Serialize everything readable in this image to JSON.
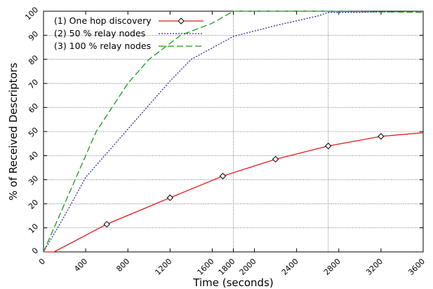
{
  "chart_data": {
    "type": "line",
    "xlabel": "Time (seconds)",
    "ylabel": "% of Received Descriptors",
    "xlim": [
      0,
      3600
    ],
    "ylim": [
      0,
      100
    ],
    "x_ticks": [
      0,
      400,
      800,
      1200,
      1600,
      1800,
      2000,
      2400,
      2800,
      3200,
      3600
    ],
    "y_ticks": [
      0,
      10,
      20,
      30,
      40,
      50,
      60,
      70,
      80,
      90,
      100
    ],
    "grid": "horizontal-dotted",
    "reference_lines_x": [
      1800,
      2700
    ],
    "legend_position": "top-left",
    "series": [
      {
        "name": "(1) One hop discovery",
        "color": "#e8191c",
        "style": "solid",
        "marker": "diamond",
        "x": [
          0,
          100,
          600,
          1200,
          1700,
          2200,
          2700,
          3200,
          3600
        ],
        "y": [
          0,
          0,
          11.5,
          22.5,
          31.5,
          38.5,
          44,
          48,
          49.5
        ],
        "marker_points": [
          [
            600,
            11.5
          ],
          [
            1200,
            22.5
          ],
          [
            1700,
            31.5
          ],
          [
            2200,
            38.5
          ],
          [
            2700,
            44
          ],
          [
            3200,
            48
          ]
        ]
      },
      {
        "name": "(2) 50 % relay nodes",
        "color": "#2b2b9e",
        "style": "dotted",
        "x": [
          0,
          200,
          400,
          800,
          1200,
          1400,
          1800,
          2200,
          2600,
          2700,
          3000,
          3600
        ],
        "y": [
          0,
          15,
          31,
          51,
          71,
          80,
          89.5,
          94,
          98,
          99.5,
          99.5,
          100
        ]
      },
      {
        "name": "(3) 100 % relay nodes",
        "color": "#1a9b1a",
        "style": "dashed",
        "x": [
          0,
          300,
          500,
          800,
          1000,
          1300,
          1600,
          1800,
          2000,
          2700,
          3600
        ],
        "y": [
          0,
          30,
          50,
          70,
          80,
          90,
          95,
          100,
          100,
          100,
          99.5
        ]
      }
    ]
  }
}
